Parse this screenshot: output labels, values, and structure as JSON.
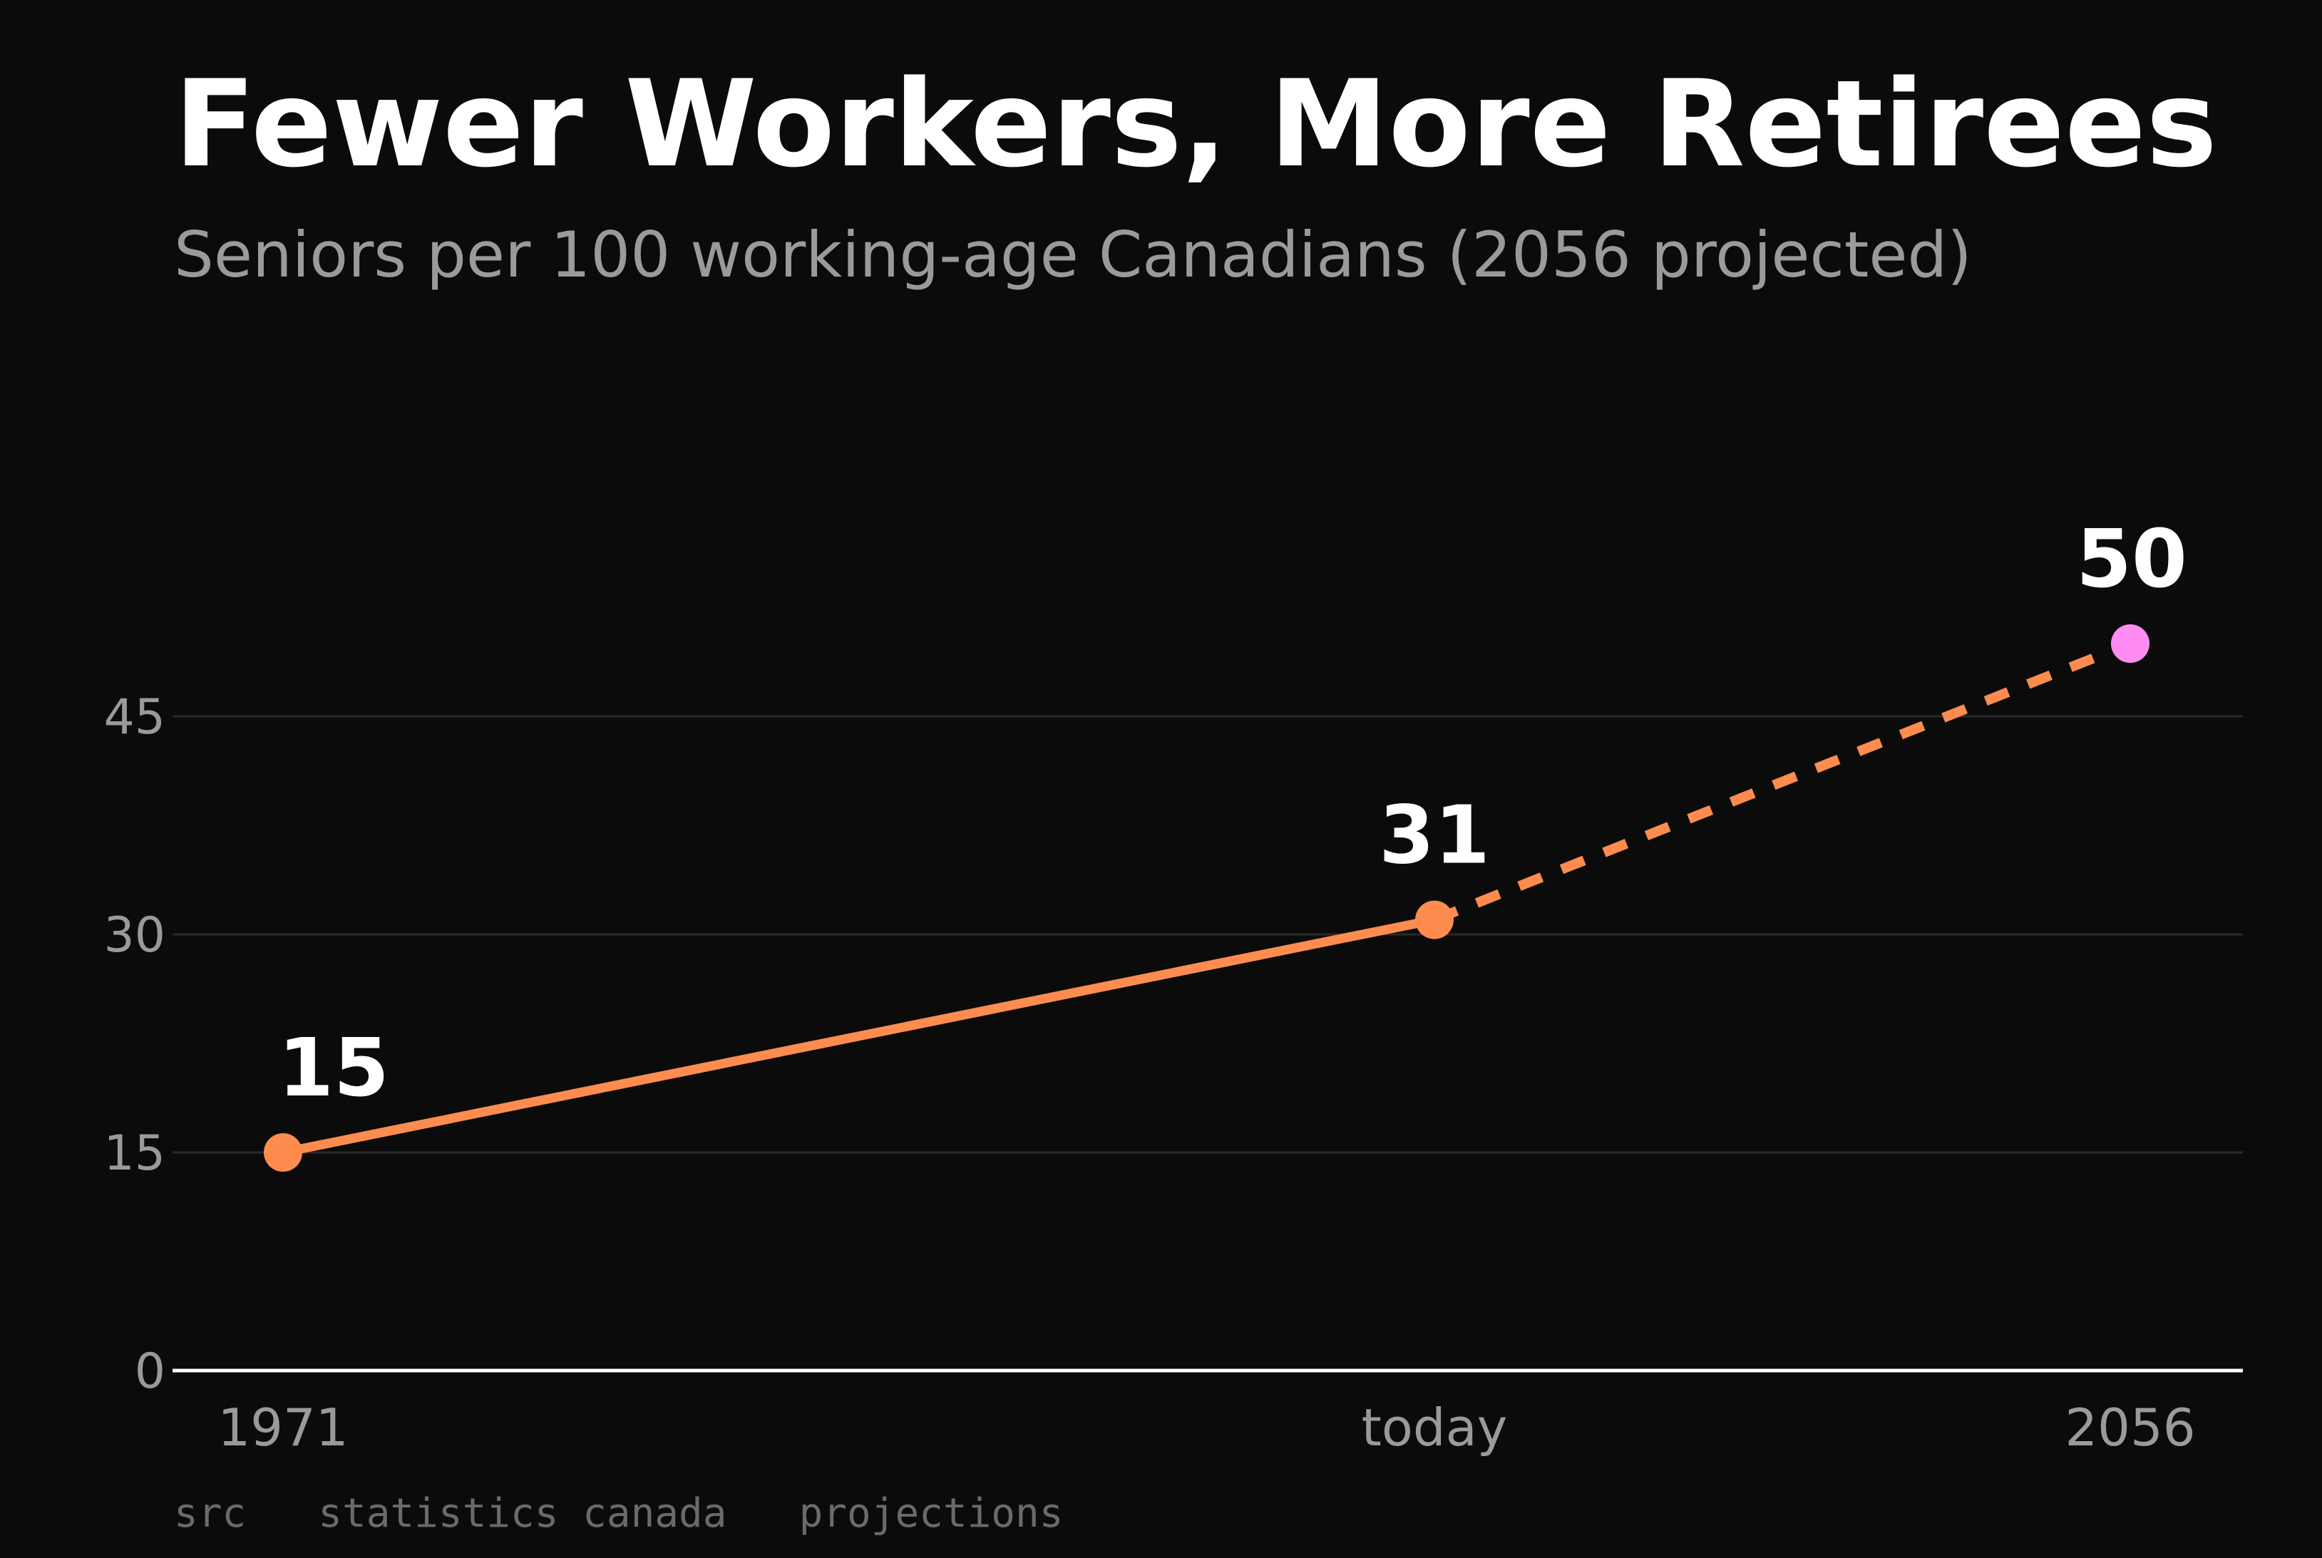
{
  "chart_data": {
    "type": "line",
    "title": "Fewer Workers, More Retirees",
    "subtitle": "Seniors per 100 working-age Canadians (2056 projected)",
    "categories": [
      "1971",
      "today",
      "2056"
    ],
    "series": [
      {
        "values": [
          15,
          31,
          50
        ],
        "style": "solid-then-dashed",
        "projected_from_index": 1
      }
    ],
    "data_labels": [
      "15",
      "31",
      "50"
    ],
    "y_ticks": [
      "0",
      "15",
      "30",
      "45"
    ],
    "ylim": [
      0,
      50
    ],
    "grid": true,
    "source": "src   statistics canada   projections",
    "colors": {
      "background": "#0b0b0b",
      "line": "#ff8c4f",
      "projected_point": "#ff8cf2",
      "grid": "#2a2a2a",
      "axis": "#ffffff"
    }
  }
}
